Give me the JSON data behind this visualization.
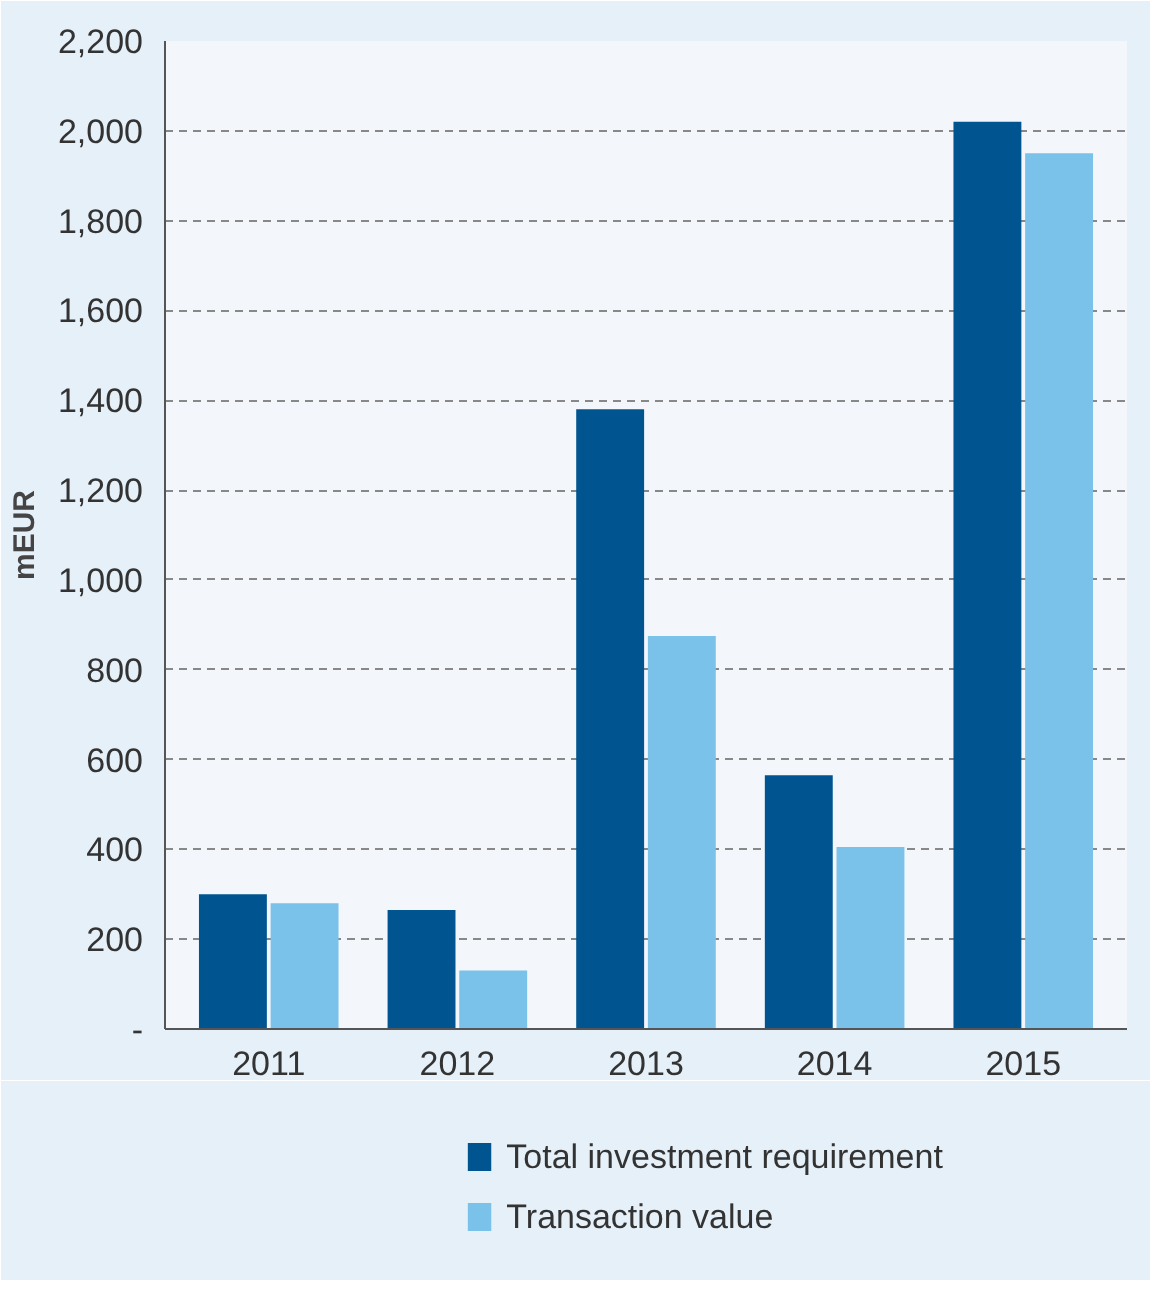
{
  "chart_data": {
    "type": "bar",
    "ylabel": "mEUR",
    "categories": [
      "2011",
      "2012",
      "2013",
      "2014",
      "2015"
    ],
    "series": [
      {
        "name": "Total investment requirement",
        "color": "#00548f",
        "values": [
          300,
          265,
          1380,
          565,
          2020
        ]
      },
      {
        "name": "Transaction value",
        "color": "#7ac2ea",
        "values": [
          280,
          130,
          875,
          405,
          1950
        ]
      }
    ],
    "ylim": [
      0,
      2200
    ],
    "yticks": [
      {
        "value": 0,
        "label": "-"
      },
      {
        "value": 200,
        "label": "200"
      },
      {
        "value": 400,
        "label": "400"
      },
      {
        "value": 600,
        "label": "600"
      },
      {
        "value": 800,
        "label": "800"
      },
      {
        "value": 1000,
        "label": "1,000"
      },
      {
        "value": 1200,
        "label": "1,200"
      },
      {
        "value": 1400,
        "label": "1,400"
      },
      {
        "value": 1600,
        "label": "1,600"
      },
      {
        "value": 1800,
        "label": "1,800"
      },
      {
        "value": 2000,
        "label": "2,000"
      },
      {
        "value": 2200,
        "label": "2,200"
      }
    ],
    "grid": "y",
    "legend": "bottom"
  }
}
